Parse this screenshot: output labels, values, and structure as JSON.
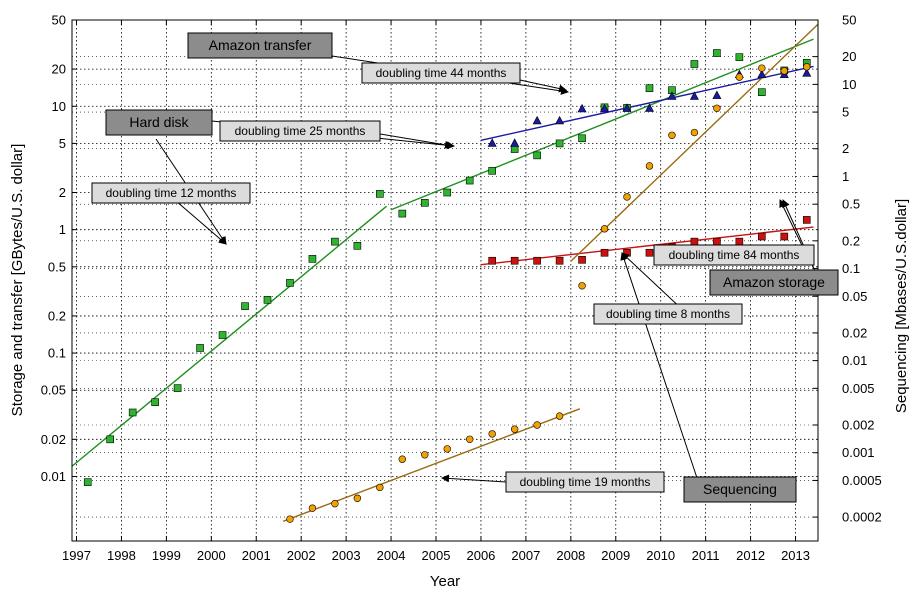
{
  "chart_data": {
    "type": "scatter",
    "xlabel": "Year",
    "ylabel_left": "Storage and transfer [GBytes/U.S. dollar]",
    "ylabel_right": "Sequencing [Mbases/U.S.dollar]",
    "x_ticks": [
      1997,
      1998,
      1999,
      2000,
      2001,
      2002,
      2003,
      2004,
      2005,
      2006,
      2007,
      2008,
      2009,
      2010,
      2011,
      2012,
      2013
    ],
    "xlim": [
      1996.9,
      2013.5
    ],
    "y_left": {
      "scale": "log",
      "ylim": [
        0.003,
        50
      ],
      "ticks": [
        0.01,
        0.02,
        0.05,
        0.1,
        0.2,
        0.5,
        1,
        2,
        5,
        10,
        20,
        50
      ],
      "tick_labels": [
        "0.01",
        "0.02",
        "0.05",
        "0.1",
        "0.2",
        "0.5",
        "1",
        "2",
        "5",
        "10",
        "20",
        "50"
      ]
    },
    "y_right": {
      "scale": "log",
      "ylim": [
        0.00011,
        50
      ],
      "ticks": [
        0.0002,
        0.0005,
        0.001,
        0.002,
        0.005,
        0.01,
        0.02,
        0.05,
        0.1,
        0.2,
        0.5,
        1,
        2,
        5,
        10,
        20,
        50
      ],
      "tick_labels": [
        "0.0002",
        "0.0005",
        "0.001",
        "0.002",
        "0.005",
        "0.01",
        "0.02",
        "0.05",
        "0.1",
        "0.2",
        "0.5",
        "1",
        "2",
        "5",
        "10",
        "20",
        "50"
      ]
    },
    "grid": true,
    "series": [
      {
        "name": "Hard disk",
        "axis": "left",
        "marker": "square",
        "color": "#2db52d",
        "x": [
          1997.25,
          1997.75,
          1998.25,
          1998.75,
          1999.25,
          1999.75,
          2000.25,
          2000.75,
          2001.25,
          2001.75,
          2002.25,
          2002.75,
          2003.25,
          2003.75,
          2004.25,
          2004.75,
          2005.25,
          2005.75,
          2006.25,
          2006.75,
          2007.25,
          2007.75,
          2008.25,
          2008.75,
          2009.25,
          2009.75,
          2010.25,
          2010.75,
          2011.25,
          2011.75,
          2012.25,
          2012.75,
          2013.25
        ],
        "y": [
          0.009,
          0.02,
          0.033,
          0.04,
          0.052,
          0.11,
          0.14,
          0.24,
          0.27,
          0.37,
          0.58,
          0.8,
          0.74,
          1.95,
          1.35,
          1.65,
          2.0,
          2.5,
          3.0,
          4.5,
          4.0,
          5.0,
          5.5,
          9.8,
          9.7,
          14.0,
          13.5,
          22.0,
          27.0,
          25.0,
          13.0,
          19.5,
          22.5
        ],
        "annotation": "doubling time 12 months"
      },
      {
        "name": "Amazon transfer",
        "axis": "left",
        "marker": "triangle",
        "color": "#1a1aa5",
        "x": [
          2006.25,
          2006.75,
          2007.25,
          2007.75,
          2008.25,
          2008.75,
          2009.25,
          2009.75,
          2010.25,
          2010.75,
          2011.25,
          2011.75,
          2012.25,
          2012.75,
          2013.25
        ],
        "y": [
          5.0,
          5.0,
          7.6,
          7.6,
          9.5,
          9.5,
          9.6,
          9.6,
          12.0,
          12.0,
          12.2,
          18.0,
          18.0,
          18.0,
          18.5
        ],
        "annotation": "doubling time 44 months"
      },
      {
        "name": "Amazon storage",
        "axis": "left",
        "marker": "square",
        "color": "#cc1111",
        "x": [
          2006.25,
          2006.75,
          2007.25,
          2007.75,
          2008.25,
          2008.75,
          2009.25,
          2009.75,
          2010.25,
          2010.75,
          2011.25,
          2011.75,
          2012.25,
          2012.75,
          2013.25
        ],
        "y": [
          0.56,
          0.56,
          0.56,
          0.56,
          0.57,
          0.65,
          0.65,
          0.65,
          0.72,
          0.8,
          0.8,
          0.8,
          0.88,
          0.88,
          1.2
        ],
        "annotation": "doubling time 84 months"
      },
      {
        "name": "Sequencing",
        "axis": "right",
        "marker": "circle",
        "color": "#f2a100",
        "x": [
          2001.75,
          2002.25,
          2002.75,
          2003.25,
          2003.75,
          2004.25,
          2004.75,
          2005.25,
          2005.75,
          2006.25,
          2006.75,
          2007.25,
          2007.75,
          2008.25,
          2008.75,
          2009.25,
          2009.75,
          2010.25,
          2010.75,
          2011.25,
          2011.75,
          2012.25,
          2012.75,
          2013.25
        ],
        "y": [
          0.00019,
          0.00025,
          0.00028,
          0.00032,
          0.00042,
          0.00085,
          0.00095,
          0.0011,
          0.0014,
          0.0016,
          0.0018,
          0.002,
          0.0025,
          0.065,
          0.27,
          0.6,
          1.3,
          2.8,
          3.0,
          5.5,
          12.0,
          15.0,
          14.0,
          15.5
        ],
        "annotation_early": "doubling time 19 months",
        "annotation_late": "doubling time 8 months"
      }
    ],
    "fit_lines": [
      {
        "series": "Hard disk",
        "axis": "left",
        "color": "#1f8f1f",
        "x": [
          1996.9,
          2003.9
        ],
        "y": [
          0.0121,
          1.55
        ]
      },
      {
        "series": "Hard disk",
        "axis": "left",
        "color": "#1f8f1f",
        "x": [
          2004.0,
          2013.4
        ],
        "y": [
          1.45,
          35.0
        ]
      },
      {
        "series": "Amazon transfer",
        "axis": "left",
        "color": "#1a1aa5",
        "x": [
          2006.0,
          2013.4
        ],
        "y": [
          5.3,
          21.0
        ]
      },
      {
        "series": "Amazon storage",
        "axis": "left",
        "color": "#cc1111",
        "x": [
          2006.0,
          2013.4
        ],
        "y": [
          0.52,
          1.05
        ]
      },
      {
        "series": "Sequencing",
        "axis": "right",
        "color": "#9a6b10",
        "x": [
          2001.6,
          2008.2
        ],
        "y": [
          0.00018,
          0.003
        ]
      },
      {
        "series": "Sequencing",
        "axis": "right",
        "color": "#9a6b10",
        "x": [
          2008.0,
          2013.5
        ],
        "y": [
          0.12,
          45.0
        ]
      }
    ],
    "labels": {
      "amazon_transfer": "Amazon transfer",
      "hard_disk": "Hard disk",
      "amazon_storage": "Amazon storage",
      "sequencing": "Sequencing",
      "dt44": "doubling time 44 months",
      "dt25": "doubling time 25 months",
      "dt12": "doubling time 12 months",
      "dt84": "doubling time 84 months",
      "dt8": "doubling time 8 months",
      "dt19": "doubling time 19 months"
    }
  }
}
